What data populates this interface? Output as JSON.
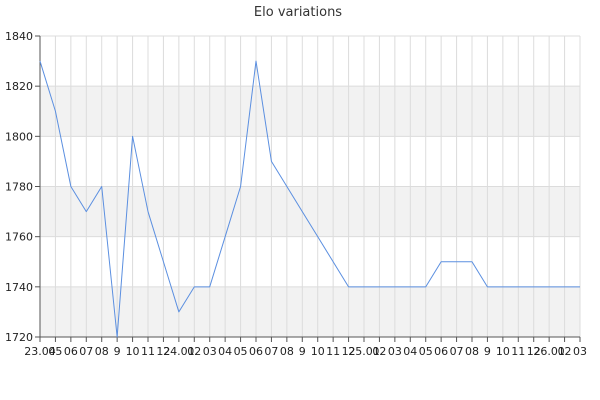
{
  "chart_data": {
    "type": "line",
    "title": "Elo variations",
    "xlabel": "",
    "ylabel": "",
    "ylim": [
      1720,
      1840
    ],
    "yticks": [
      1720,
      1740,
      1760,
      1780,
      1800,
      1820,
      1840
    ],
    "grid": true,
    "legend": "none",
    "categories": [
      "23.04",
      "05",
      "06",
      "07",
      "08",
      "09",
      "10",
      "11",
      "12",
      "24.01",
      "02",
      "03",
      "04",
      "05",
      "06",
      "07",
      "08",
      "09",
      "10",
      "11",
      "12",
      "25.01",
      "02",
      "03",
      "04",
      "05",
      "06",
      "07",
      "08",
      "09",
      "10",
      "11",
      "12",
      "26.01",
      "02",
      "03"
    ],
    "tick_labels": [
      "23.04",
      "05",
      "06",
      "07",
      "08",
      "9",
      "10",
      "11",
      "12",
      "24.01",
      "02",
      "03",
      "04",
      "05",
      "06",
      "07",
      "08",
      "9",
      "10",
      "11",
      "12",
      "25.01",
      "02",
      "03",
      "04",
      "05",
      "06",
      "07",
      "08",
      "9",
      "10",
      "11",
      "12",
      "26.01",
      "02",
      "03"
    ],
    "series": [
      {
        "name": "",
        "color": "#5b8fe0",
        "values": [
          1830,
          1810,
          1780,
          1770,
          1780,
          1720,
          1800,
          1770,
          1750,
          1730,
          1740,
          1740,
          1760,
          1780,
          1830,
          1790,
          1780,
          1770,
          1760,
          1750,
          1740,
          1740,
          1740,
          1740,
          1740,
          1740,
          1750,
          1750,
          1750,
          1740,
          1740,
          1740,
          1740,
          1740,
          1740,
          1740
        ]
      }
    ]
  },
  "colors": {
    "line": "#5b8fe0",
    "band": "#f2f2f2",
    "grid": "#dcdcdc",
    "axis": "#555555"
  }
}
